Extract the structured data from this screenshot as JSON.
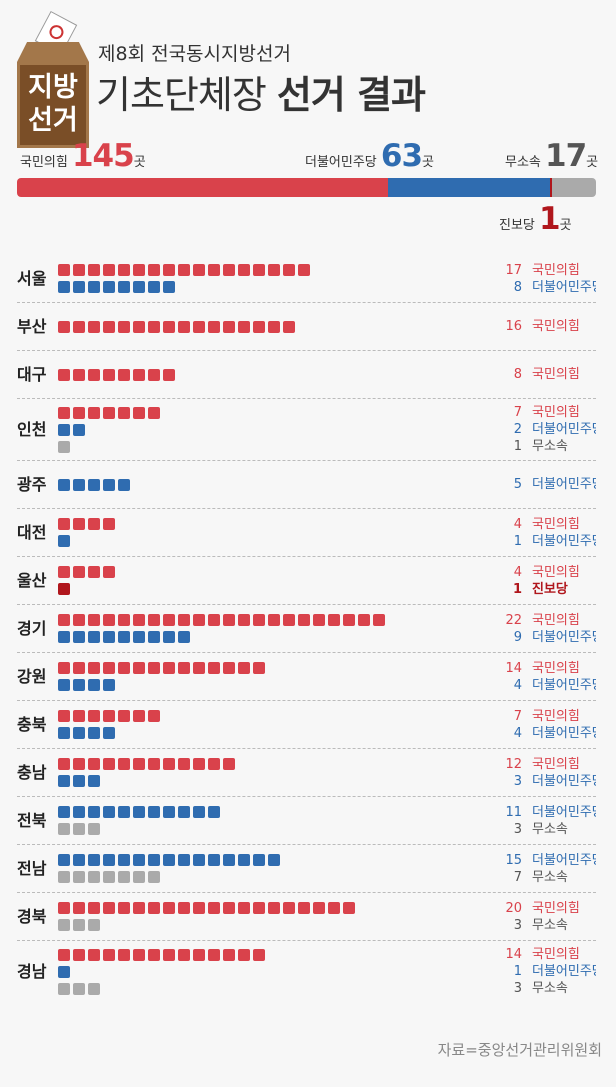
{
  "header": {
    "logo_text": "지방 선거",
    "subtitle": "제8회 전국동시지방선거",
    "title_light": "기초단체장",
    "title_bold": "선거 결과"
  },
  "colors": {
    "국민의힘": "#d9424b",
    "더불어민주당": "#2f6cb0",
    "무소속": "#aaaaaa",
    "진보당": "#b0161c"
  },
  "totals": [
    {
      "party": "국민의힘",
      "count": 145,
      "unit": "곳"
    },
    {
      "party": "더불어민주당",
      "count": 63,
      "unit": "곳"
    },
    {
      "party": "진보당",
      "count": 1,
      "unit": "곳"
    },
    {
      "party": "무소속",
      "count": 17,
      "unit": "곳"
    }
  ],
  "chart_data": {
    "type": "table",
    "unit": "곳",
    "regions": [
      {
        "name": "서울",
        "results": [
          {
            "party": "국민의힘",
            "count": 17
          },
          {
            "party": "더불어민주당",
            "count": 8
          }
        ]
      },
      {
        "name": "부산",
        "results": [
          {
            "party": "국민의힘",
            "count": 16
          }
        ]
      },
      {
        "name": "대구",
        "results": [
          {
            "party": "국민의힘",
            "count": 8
          }
        ]
      },
      {
        "name": "인천",
        "results": [
          {
            "party": "국민의힘",
            "count": 7
          },
          {
            "party": "더불어민주당",
            "count": 2
          },
          {
            "party": "무소속",
            "count": 1
          }
        ]
      },
      {
        "name": "광주",
        "results": [
          {
            "party": "더불어민주당",
            "count": 5
          }
        ]
      },
      {
        "name": "대전",
        "results": [
          {
            "party": "국민의힘",
            "count": 4
          },
          {
            "party": "더불어민주당",
            "count": 1
          }
        ]
      },
      {
        "name": "울산",
        "results": [
          {
            "party": "국민의힘",
            "count": 4
          },
          {
            "party": "진보당",
            "count": 1
          }
        ]
      },
      {
        "name": "경기",
        "results": [
          {
            "party": "국민의힘",
            "count": 22
          },
          {
            "party": "더불어민주당",
            "count": 9
          }
        ]
      },
      {
        "name": "강원",
        "results": [
          {
            "party": "국민의힘",
            "count": 14
          },
          {
            "party": "더불어민주당",
            "count": 4
          }
        ]
      },
      {
        "name": "충북",
        "results": [
          {
            "party": "국민의힘",
            "count": 7
          },
          {
            "party": "더불어민주당",
            "count": 4
          }
        ]
      },
      {
        "name": "충남",
        "results": [
          {
            "party": "국민의힘",
            "count": 12
          },
          {
            "party": "더불어민주당",
            "count": 3
          }
        ]
      },
      {
        "name": "전북",
        "results": [
          {
            "party": "더불어민주당",
            "count": 11
          },
          {
            "party": "무소속",
            "count": 3
          }
        ]
      },
      {
        "name": "전남",
        "results": [
          {
            "party": "더불어민주당",
            "count": 15
          },
          {
            "party": "무소속",
            "count": 7
          }
        ]
      },
      {
        "name": "경북",
        "results": [
          {
            "party": "국민의힘",
            "count": 20
          },
          {
            "party": "무소속",
            "count": 3
          }
        ]
      },
      {
        "name": "경남",
        "results": [
          {
            "party": "국민의힘",
            "count": 14
          },
          {
            "party": "더불어민주당",
            "count": 1
          },
          {
            "party": "무소속",
            "count": 3
          }
        ]
      }
    ]
  },
  "source": "자료=중앙선거관리위원회"
}
